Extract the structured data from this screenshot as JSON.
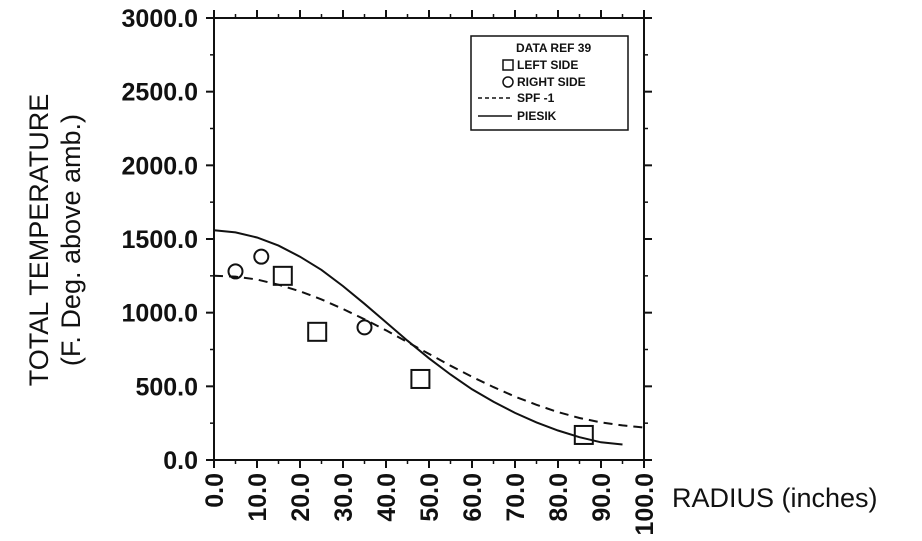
{
  "chart_data": {
    "type": "scatter",
    "xlabel": "RADIUS (inches)",
    "ylabel_line1": "TOTAL TEMPERATURE",
    "ylabel_line2": "(F. Deg. above amb.)",
    "xlim": [
      0,
      100
    ],
    "ylim": [
      0,
      3000
    ],
    "x_ticks": [
      "0.0",
      "10.0",
      "20.0",
      "30.0",
      "40.0",
      "50.0",
      "60.0",
      "70.0",
      "80.0",
      "90.0",
      "100.0"
    ],
    "y_ticks": [
      "0.0",
      "500.0",
      "1000.0",
      "1500.0",
      "2000.0",
      "2500.0",
      "3000.0"
    ],
    "legend": {
      "title": "DATA REF 39",
      "placement": "top-right",
      "entries": [
        "LEFT SIDE",
        "RIGHT SIDE",
        "SPF -1",
        "PIESIK"
      ]
    },
    "series": [
      {
        "name": "LEFT SIDE",
        "kind": "scatter",
        "marker": "square",
        "points": [
          [
            16,
            1250
          ],
          [
            24,
            870
          ],
          [
            48,
            550
          ],
          [
            86,
            170
          ]
        ]
      },
      {
        "name": "RIGHT SIDE",
        "kind": "scatter",
        "marker": "circle",
        "points": [
          [
            5,
            1280
          ],
          [
            11,
            1380
          ],
          [
            35,
            900
          ]
        ]
      },
      {
        "name": "SPF -1",
        "kind": "line",
        "style": "dashed",
        "points": [
          [
            0,
            1250
          ],
          [
            5,
            1245
          ],
          [
            10,
            1225
          ],
          [
            15,
            1190
          ],
          [
            20,
            1145
          ],
          [
            25,
            1090
          ],
          [
            30,
            1025
          ],
          [
            35,
            955
          ],
          [
            40,
            880
          ],
          [
            45,
            800
          ],
          [
            50,
            720
          ],
          [
            55,
            640
          ],
          [
            60,
            565
          ],
          [
            65,
            495
          ],
          [
            70,
            430
          ],
          [
            75,
            375
          ],
          [
            80,
            325
          ],
          [
            85,
            285
          ],
          [
            90,
            255
          ],
          [
            95,
            235
          ],
          [
            100,
            220
          ]
        ]
      },
      {
        "name": "PIESIK",
        "kind": "line",
        "style": "solid",
        "points": [
          [
            0,
            1560
          ],
          [
            5,
            1545
          ],
          [
            10,
            1510
          ],
          [
            15,
            1455
          ],
          [
            20,
            1380
          ],
          [
            25,
            1290
          ],
          [
            30,
            1180
          ],
          [
            35,
            1060
          ],
          [
            40,
            935
          ],
          [
            45,
            810
          ],
          [
            50,
            690
          ],
          [
            55,
            580
          ],
          [
            60,
            480
          ],
          [
            65,
            395
          ],
          [
            70,
            320
          ],
          [
            75,
            255
          ],
          [
            80,
            200
          ],
          [
            85,
            155
          ],
          [
            90,
            120
          ],
          [
            95,
            105
          ]
        ]
      }
    ]
  }
}
